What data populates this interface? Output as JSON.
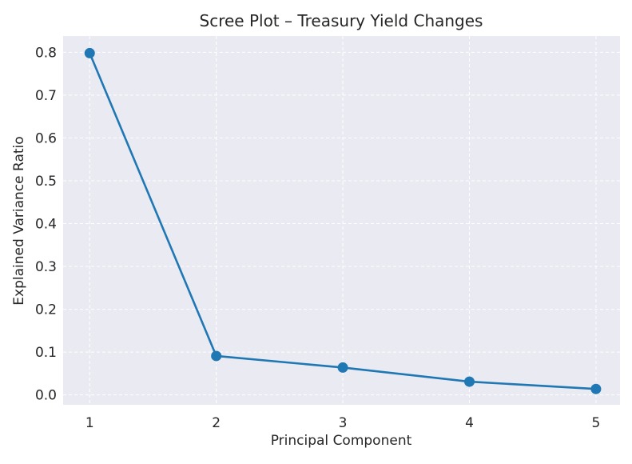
{
  "chart_data": {
    "type": "line",
    "title": "Scree Plot – Treasury Yield Changes",
    "xlabel": "Principal Component",
    "ylabel": "Explained Variance Ratio",
    "x": [
      1,
      2,
      3,
      4,
      5
    ],
    "series": [
      {
        "values": [
          0.798,
          0.091,
          0.064,
          0.031,
          0.014
        ]
      }
    ],
    "x_ticks": [
      "1",
      "2",
      "3",
      "4",
      "5"
    ],
    "y_ticks": [
      "0.0",
      "0.1",
      "0.2",
      "0.3",
      "0.4",
      "0.5",
      "0.6",
      "0.7",
      "0.8"
    ],
    "xlim": [
      0.79,
      5.19
    ],
    "ylim": [
      -0.023,
      0.838
    ],
    "grid": true,
    "colors": {
      "plot_background": "#eaeaf2",
      "grid": "#ffffff",
      "line": "#1f77b4"
    }
  }
}
